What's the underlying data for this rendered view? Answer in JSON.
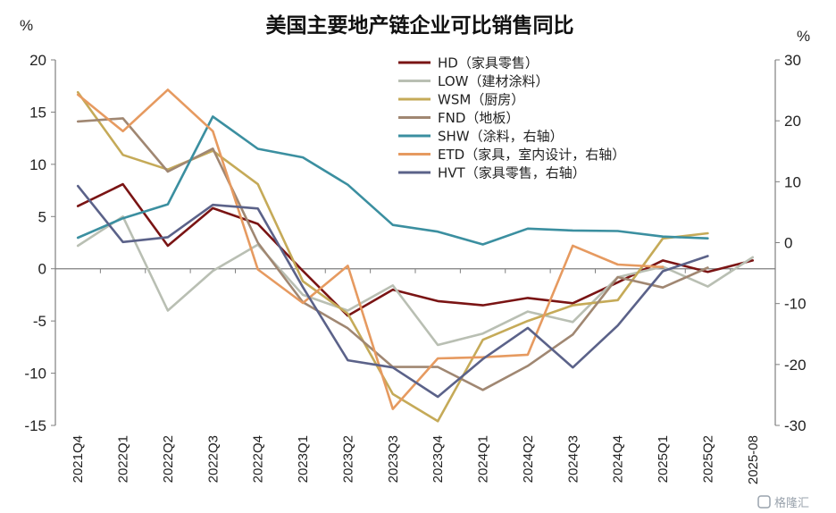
{
  "chart_data": {
    "type": "line",
    "title": "美国主要地产链企业可比销售同比",
    "y_left_unit": "%",
    "y_right_unit": "%",
    "ylim_left": [
      -15,
      20
    ],
    "ylim_right": [
      -30,
      30
    ],
    "yticks_left": [
      "20",
      "15",
      "10",
      "5",
      "0",
      "-5",
      "-10",
      "-15"
    ],
    "yticks_right": [
      "30",
      "20",
      "10",
      "0",
      "-10",
      "-20",
      "-30"
    ],
    "categories": [
      "2021Q4",
      "2022Q1",
      "2022Q2",
      "2022Q3",
      "2022Q4",
      "2023Q1",
      "2023Q2",
      "2023Q3",
      "2023Q4",
      "2024Q1",
      "2024Q2",
      "2024Q3",
      "2024Q4",
      "2025Q1",
      "2025Q2",
      "2025-08"
    ],
    "legend_position": "top-center",
    "grid": false,
    "series": [
      {
        "name": "HD（家具零售）",
        "axis": "left",
        "color": "#7a1414",
        "values": [
          6.0,
          8.1,
          2.2,
          5.8,
          4.3,
          -0.2,
          -4.5,
          -2.0,
          -3.1,
          -3.5,
          -2.8,
          -3.3,
          -1.3,
          0.8,
          -0.3,
          0.8
        ]
      },
      {
        "name": "LOW（建材涂料）",
        "axis": "left",
        "color": "#b9bfb3",
        "values": [
          2.2,
          5.0,
          -4.0,
          -0.2,
          2.3,
          -2.5,
          -4.0,
          -1.6,
          -7.3,
          -6.2,
          -4.1,
          -5.1,
          -0.8,
          0.2,
          -1.7,
          1.1
        ]
      },
      {
        "name": "WSM（厨房）",
        "axis": "left",
        "color": "#c5aa58",
        "values": [
          16.9,
          10.9,
          9.5,
          11.3,
          8.1,
          -1.2,
          -4.3,
          -12.0,
          -14.6,
          -6.8,
          -5.0,
          -3.5,
          -3.0,
          2.9,
          3.4,
          null
        ]
      },
      {
        "name": "FND（地板）",
        "axis": "left",
        "color": "#a08772",
        "values": [
          14.1,
          14.4,
          9.3,
          11.5,
          2.5,
          -3.2,
          -5.7,
          -9.4,
          -9.4,
          -11.6,
          -9.3,
          -6.3,
          -0.8,
          -1.8,
          0.1,
          null
        ]
      },
      {
        "name": "SHW（涂料，右轴）",
        "axis": "right",
        "color": "#3b8fa0",
        "values": [
          0.8,
          4.0,
          6.3,
          20.7,
          15.4,
          14.0,
          9.5,
          2.9,
          1.8,
          -0.3,
          2.3,
          2.0,
          1.9,
          1.0,
          0.7,
          null
        ]
      },
      {
        "name": "ETD（家具，室内设计，右轴）",
        "axis": "right",
        "color": "#e69a60",
        "values": [
          24.3,
          18.3,
          25.1,
          18.3,
          -4.4,
          -9.9,
          -3.8,
          -27.3,
          -19.0,
          -18.8,
          -18.4,
          -0.5,
          -3.6,
          -4.0,
          null,
          null
        ]
      },
      {
        "name": "HVT（家具零售，右轴）",
        "axis": "right",
        "color": "#5b6289",
        "values": [
          9.3,
          0.1,
          0.9,
          6.2,
          5.6,
          -7.3,
          -19.3,
          -20.5,
          -25.3,
          -19.1,
          -14.0,
          -20.5,
          -13.6,
          -4.7,
          -2.2,
          null
        ]
      }
    ]
  },
  "watermark": "格隆汇"
}
